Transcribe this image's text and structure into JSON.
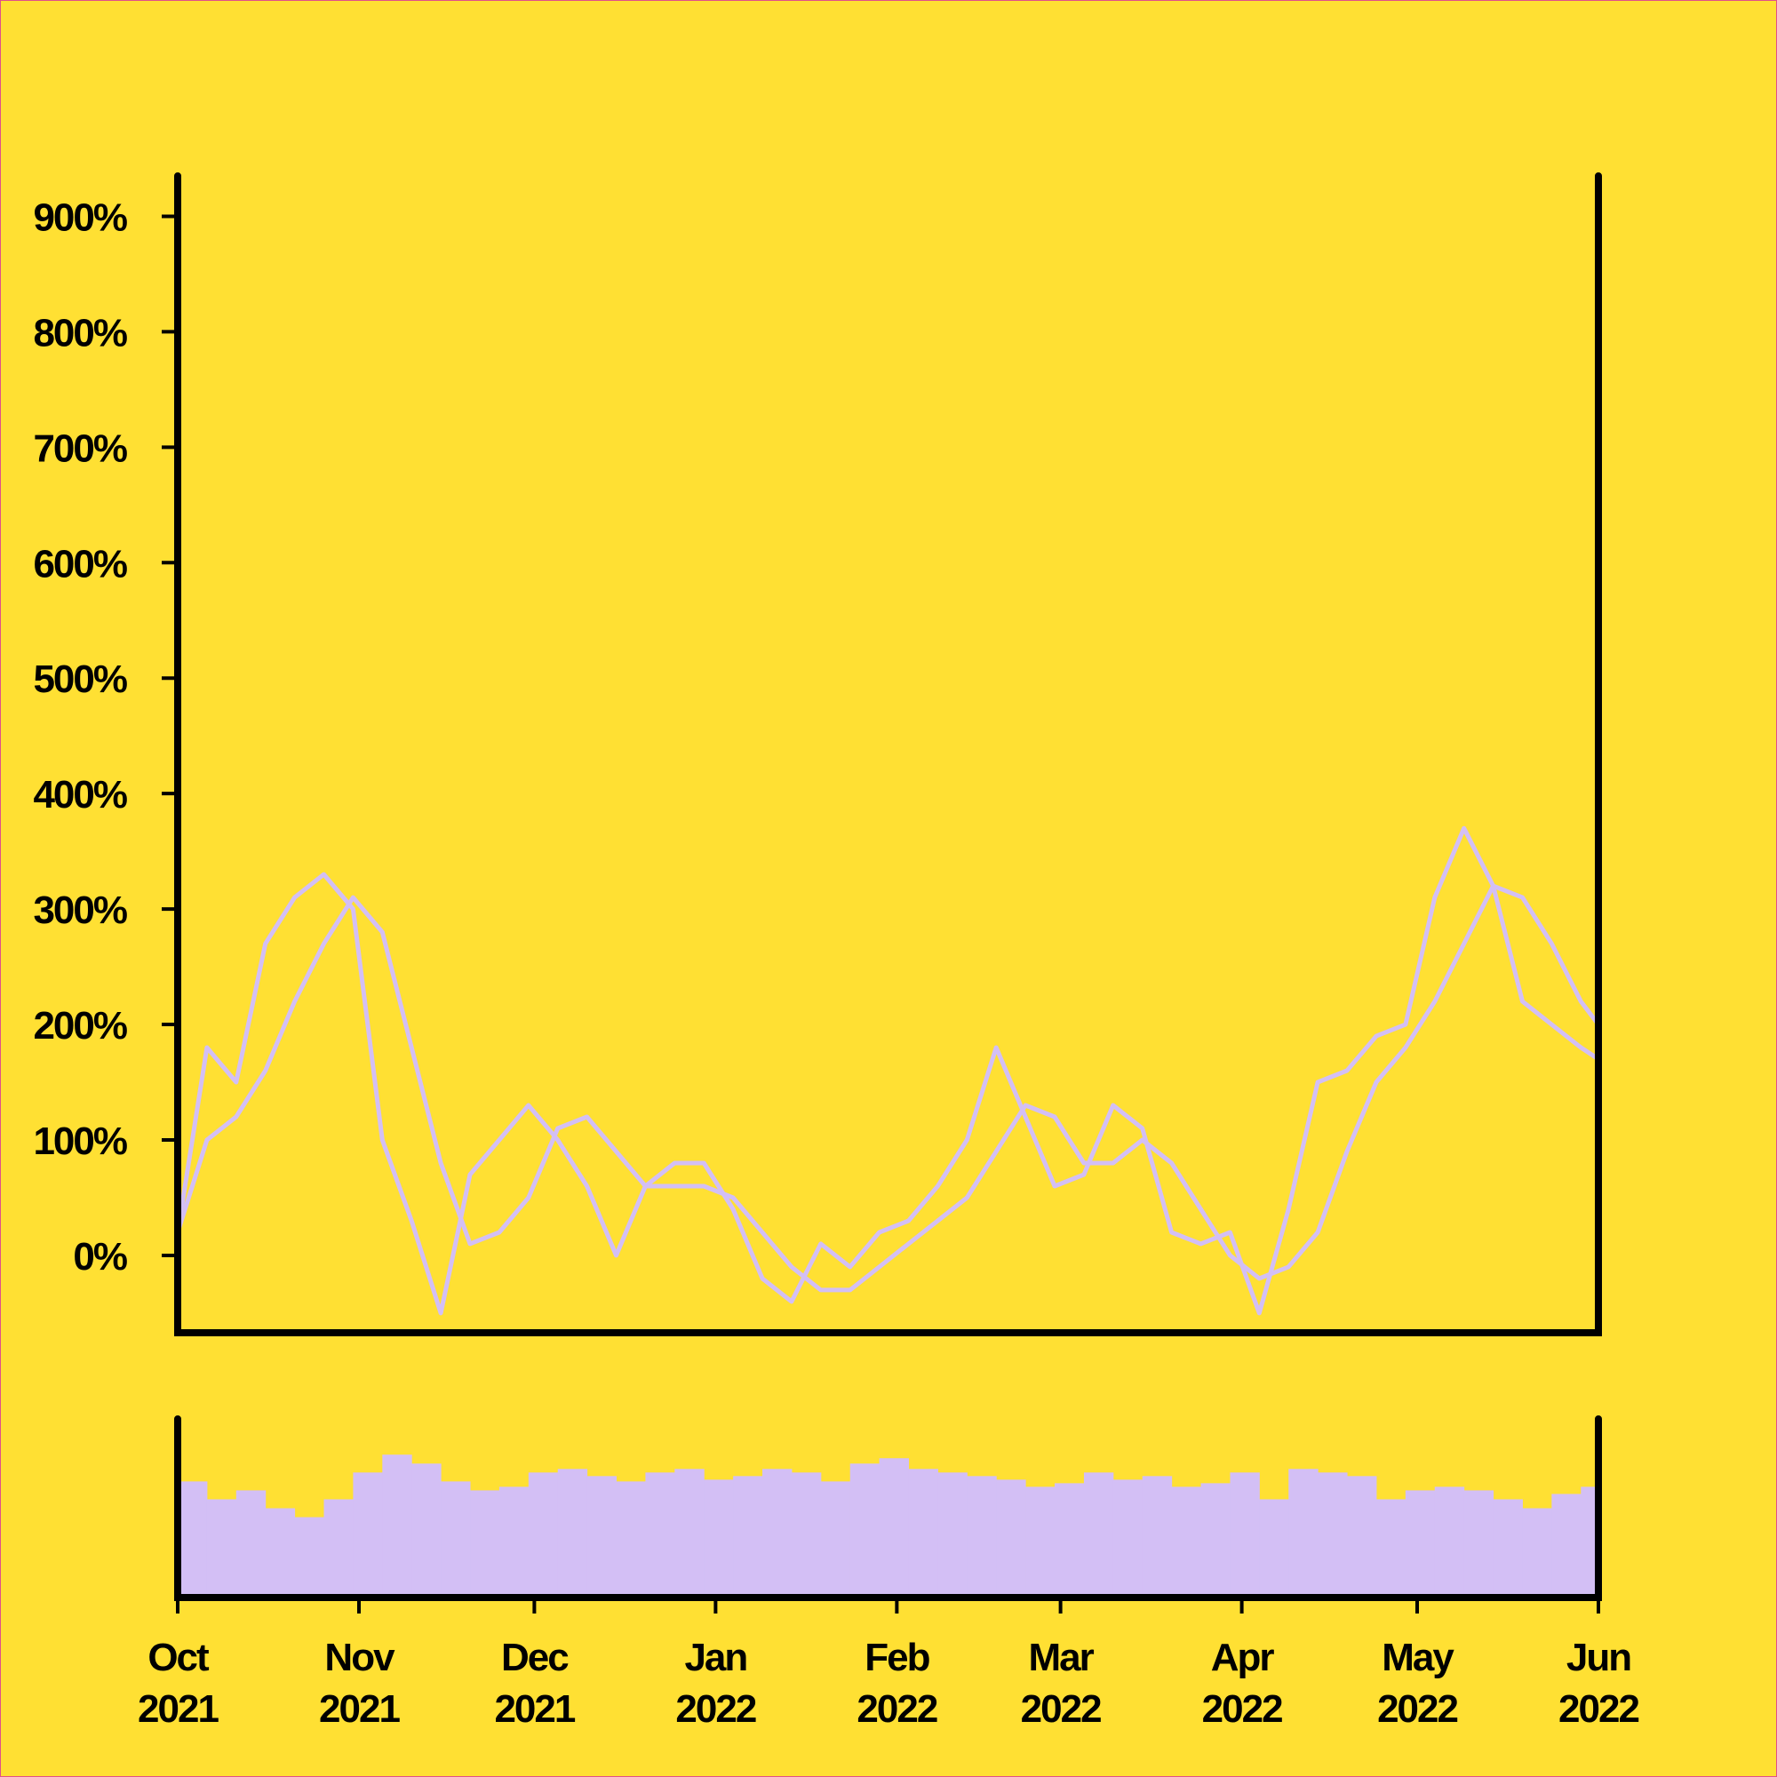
{
  "chart_data": [
    {
      "type": "line",
      "x": [
        "2021-10-01",
        "2021-10-06",
        "2021-10-11",
        "2021-10-16",
        "2021-10-21",
        "2021-10-26",
        "2021-10-31",
        "2021-11-05",
        "2021-11-10",
        "2021-11-15",
        "2021-11-20",
        "2021-11-25",
        "2021-11-30",
        "2021-12-05",
        "2021-12-10",
        "2021-12-15",
        "2021-12-20",
        "2021-12-25",
        "2021-12-30",
        "2022-01-04",
        "2022-01-09",
        "2022-01-14",
        "2022-01-19",
        "2022-01-24",
        "2022-01-29",
        "2022-02-03",
        "2022-02-08",
        "2022-02-13",
        "2022-02-18",
        "2022-02-23",
        "2022-02-28",
        "2022-03-05",
        "2022-03-10",
        "2022-03-15",
        "2022-03-20",
        "2022-03-25",
        "2022-03-30",
        "2022-04-04",
        "2022-04-09",
        "2022-04-14",
        "2022-04-19",
        "2022-04-24",
        "2022-04-29",
        "2022-05-04",
        "2022-05-09",
        "2022-05-14",
        "2022-05-19",
        "2022-05-24",
        "2022-05-29",
        "2022-06-01"
      ],
      "xlim": [
        "2021-10-01",
        "2022-06-01"
      ],
      "ylim": [
        -67,
        935
      ],
      "yticks": [
        {
          "value": 0,
          "label": "0%"
        },
        {
          "value": 100,
          "label": "100%"
        },
        {
          "value": 200,
          "label": "200%"
        },
        {
          "value": 300,
          "label": "300%"
        },
        {
          "value": 400,
          "label": "400%"
        },
        {
          "value": 500,
          "label": "500%"
        },
        {
          "value": 600,
          "label": "600%"
        },
        {
          "value": 700,
          "label": "700%"
        },
        {
          "value": 800,
          "label": "800%"
        },
        {
          "value": 900,
          "label": "900%"
        }
      ],
      "series": [
        {
          "color": "#d3bff5",
          "values": [
            20,
            180,
            150,
            270,
            310,
            330,
            300,
            100,
            30,
            -50,
            70,
            100,
            130,
            100,
            60,
            0,
            60,
            80,
            80,
            40,
            -20,
            -40,
            10,
            -10,
            20,
            30,
            60,
            100,
            180,
            120,
            60,
            70,
            130,
            110,
            20,
            10,
            20,
            -50,
            40,
            150,
            160,
            190,
            200,
            310,
            370,
            320,
            220,
            200,
            180,
            170
          ]
        },
        {
          "color": "#d3bff5",
          "values": [
            20,
            100,
            120,
            160,
            220,
            270,
            310,
            280,
            180,
            80,
            10,
            20,
            50,
            110,
            120,
            90,
            60,
            60,
            60,
            50,
            20,
            -10,
            -30,
            -30,
            -10,
            10,
            30,
            50,
            90,
            130,
            120,
            80,
            80,
            100,
            80,
            40,
            0,
            -20,
            -10,
            20,
            90,
            150,
            180,
            220,
            270,
            320,
            310,
            270,
            220,
            200
          ]
        }
      ]
    },
    {
      "type": "bar",
      "x": [
        "2021-10-01",
        "2021-10-06",
        "2021-10-11",
        "2021-10-16",
        "2021-10-21",
        "2021-10-26",
        "2021-10-31",
        "2021-11-05",
        "2021-11-10",
        "2021-11-15",
        "2021-11-20",
        "2021-11-25",
        "2021-11-30",
        "2021-12-05",
        "2021-12-10",
        "2021-12-15",
        "2021-12-20",
        "2021-12-25",
        "2021-12-30",
        "2022-01-04",
        "2022-01-09",
        "2022-01-14",
        "2022-01-19",
        "2022-01-24",
        "2022-01-29",
        "2022-02-03",
        "2022-02-08",
        "2022-02-13",
        "2022-02-18",
        "2022-02-23",
        "2022-02-28",
        "2022-03-05",
        "2022-03-10",
        "2022-03-15",
        "2022-03-20",
        "2022-03-25",
        "2022-03-30",
        "2022-04-04",
        "2022-04-09",
        "2022-04-14",
        "2022-04-19",
        "2022-04-24",
        "2022-04-29",
        "2022-05-04",
        "2022-05-09",
        "2022-05-14",
        "2022-05-19",
        "2022-05-24",
        "2022-05-29",
        "2022-06-01"
      ],
      "xlim": [
        "2021-10-01",
        "2022-06-01"
      ],
      "xticks": [
        {
          "value": "2021-10-01",
          "label": "Oct\n2021"
        },
        {
          "value": "2021-11-01",
          "label": "Nov\n2021"
        },
        {
          "value": "2021-12-01",
          "label": "Dec\n2021"
        },
        {
          "value": "2022-01-01",
          "label": "Jan\n2022"
        },
        {
          "value": "2022-02-01",
          "label": "Feb\n2022"
        },
        {
          "value": "2022-03-01",
          "label": "Mar\n2022"
        },
        {
          "value": "2022-04-01",
          "label": "Apr\n2022"
        },
        {
          "value": "2022-05-01",
          "label": "May\n2022"
        },
        {
          "value": "2022-06-01",
          "label": "Jun\n2022"
        }
      ],
      "ylim": [
        0,
        100
      ],
      "color": "#d3bff5",
      "values": [
        65,
        55,
        60,
        50,
        45,
        55,
        70,
        80,
        75,
        65,
        60,
        62,
        70,
        72,
        68,
        65,
        70,
        72,
        66,
        68,
        72,
        70,
        65,
        75,
        78,
        72,
        70,
        68,
        66,
        62,
        64,
        70,
        66,
        68,
        62,
        64,
        70,
        55,
        72,
        70,
        68,
        55,
        60,
        62,
        60,
        55,
        50,
        58,
        62,
        55
      ]
    }
  ]
}
